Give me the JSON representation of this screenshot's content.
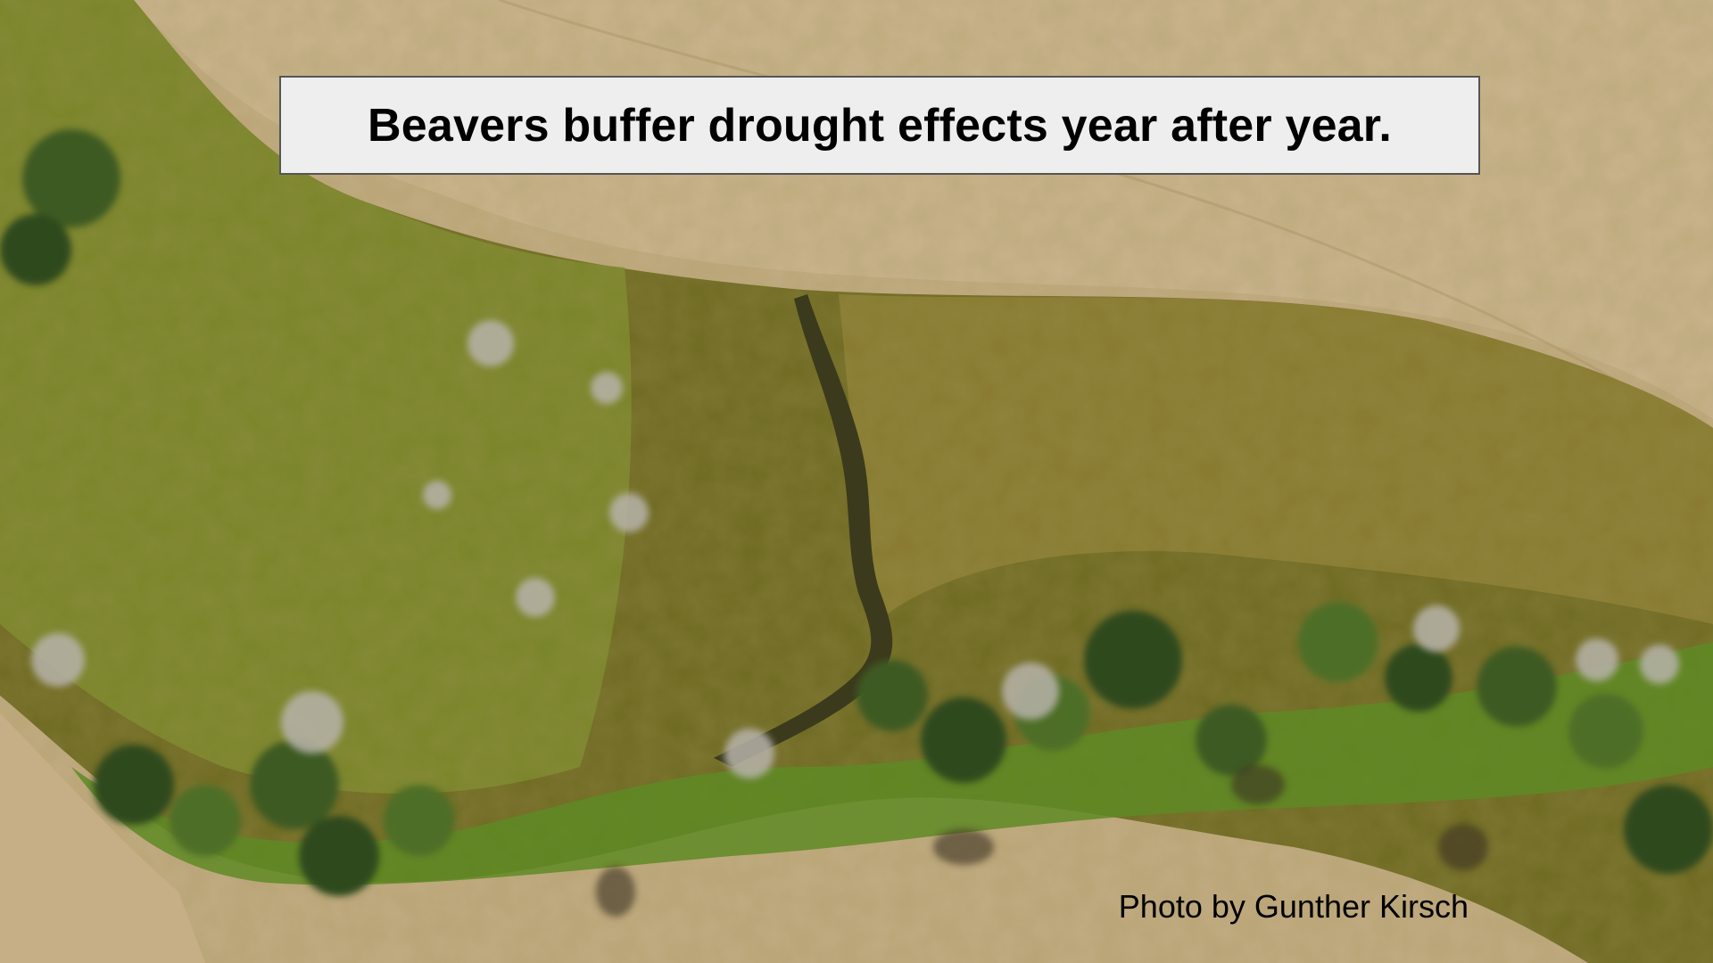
{
  "slide": {
    "title": "Beavers buffer drought effects year after year.",
    "photo_credit": "Photo by Gunther Kirsch"
  },
  "photo": {
    "subject": "aerial-wetland-riparian-corridor",
    "colors": {
      "dry_grass": "#c2ab82",
      "dry_grass_light": "#cdb893",
      "wetland": "#6f6a22",
      "wetland_light": "#8d8a2c",
      "green_edge": "#7c9a2a",
      "channel_water": "#3b3a1c",
      "tree_dark": "#2f4a1c",
      "tree_mid": "#4d6e28",
      "tree_pale": "#b7b3aa"
    }
  }
}
